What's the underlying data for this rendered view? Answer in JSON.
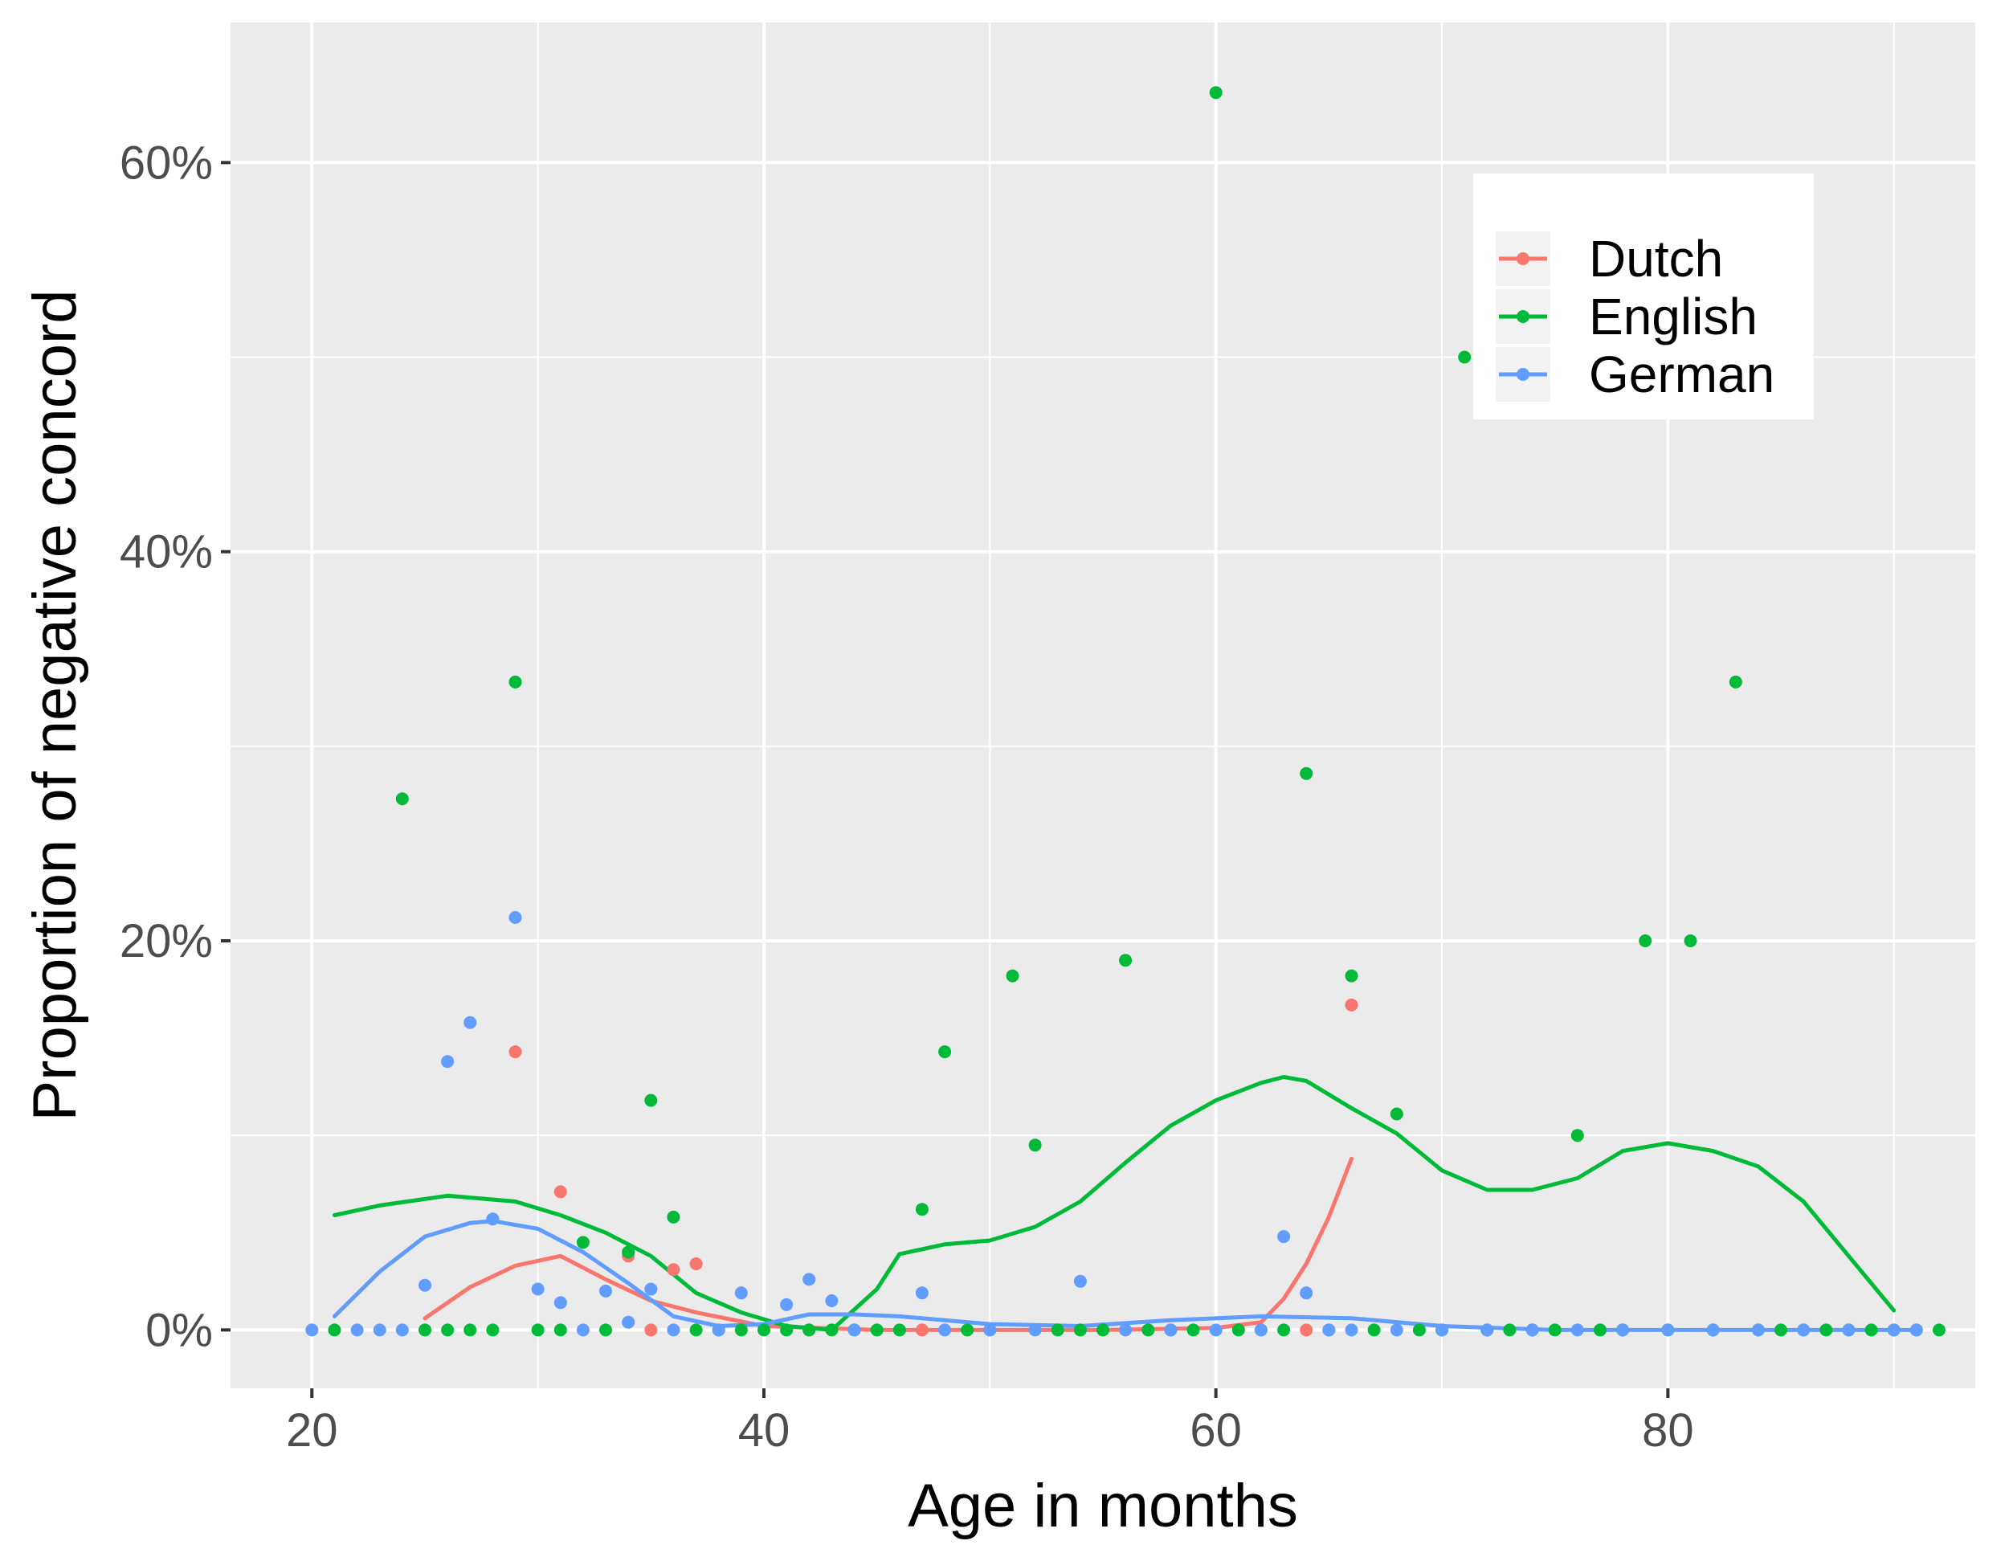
{
  "chart_data": {
    "type": "scatter",
    "title": "",
    "xlabel": "Age in months",
    "ylabel": "Proportion of negative concord",
    "xlim": [
      16.4,
      93.6
    ],
    "ylim": [
      -0.03,
      0.672
    ],
    "x_ticks": [
      20,
      40,
      60,
      80
    ],
    "x_tick_labels": [
      "20",
      "40",
      "60",
      "80"
    ],
    "x_minor_ticks": [
      30,
      50,
      70,
      90
    ],
    "y_ticks": [
      0,
      0.2,
      0.4,
      0.6
    ],
    "y_tick_labels": [
      "0%",
      "20%",
      "40%",
      "60%"
    ],
    "y_minor_ticks": [
      0.1,
      0.3,
      0.5
    ],
    "grid": true,
    "legend_position": "top-right",
    "colors": {
      "panel": "#EBEBEB",
      "grid": "#FFFFFF",
      "Dutch": "#F8766D",
      "English": "#00BA38",
      "German": "#619CFF"
    },
    "series": [
      {
        "name": "Dutch",
        "points": [
          [
            29,
            0.143
          ],
          [
            31,
            0.071
          ],
          [
            34,
            0.038
          ],
          [
            35,
            0.0
          ],
          [
            36,
            0.031
          ],
          [
            37,
            0.034
          ],
          [
            42,
            0.0
          ],
          [
            47,
            0.0
          ],
          [
            64,
            0.0
          ],
          [
            66,
            0.167
          ]
        ],
        "smooth": [
          [
            25,
            0.006
          ],
          [
            27,
            0.022
          ],
          [
            29,
            0.033
          ],
          [
            31,
            0.038
          ],
          [
            33,
            0.026
          ],
          [
            35,
            0.015
          ],
          [
            37,
            0.009
          ],
          [
            40,
            0.002
          ],
          [
            45,
            0.0
          ],
          [
            50,
            0.0
          ],
          [
            55,
            0.0
          ],
          [
            60,
            0.001
          ],
          [
            62,
            0.004
          ],
          [
            63,
            0.016
          ],
          [
            64,
            0.034
          ],
          [
            65,
            0.058
          ],
          [
            66,
            0.088
          ]
        ]
      },
      {
        "name": "English",
        "points": [
          [
            21,
            0.0
          ],
          [
            24,
            0.273
          ],
          [
            25,
            0.0
          ],
          [
            26,
            0.0
          ],
          [
            27,
            0.0
          ],
          [
            28,
            0.0
          ],
          [
            29,
            0.333
          ],
          [
            30,
            0.0
          ],
          [
            31,
            0.0
          ],
          [
            32,
            0.045
          ],
          [
            33,
            0.0
          ],
          [
            34,
            0.04
          ],
          [
            35,
            0.118
          ],
          [
            36,
            0.058
          ],
          [
            37,
            0.0
          ],
          [
            38,
            0.0
          ],
          [
            39,
            0.0
          ],
          [
            40,
            0.0
          ],
          [
            41,
            0.0
          ],
          [
            42,
            0.0
          ],
          [
            43,
            0.0
          ],
          [
            44,
            0.0
          ],
          [
            45,
            0.0
          ],
          [
            46,
            0.0
          ],
          [
            47,
            0.062
          ],
          [
            48,
            0.143
          ],
          [
            49,
            0.0
          ],
          [
            50,
            0.0
          ],
          [
            51,
            0.182
          ],
          [
            52,
            0.095
          ],
          [
            53,
            0.0
          ],
          [
            54,
            0.0
          ],
          [
            55,
            0.0
          ],
          [
            56,
            0.19
          ],
          [
            57,
            0.0
          ],
          [
            58,
            0.0
          ],
          [
            59,
            0.0
          ],
          [
            60,
            0.636
          ],
          [
            61,
            0.0
          ],
          [
            62,
            0.0
          ],
          [
            63,
            0.0
          ],
          [
            64,
            0.286
          ],
          [
            65,
            0.0
          ],
          [
            66,
            0.182
          ],
          [
            67,
            0.0
          ],
          [
            68,
            0.111
          ],
          [
            69,
            0.0
          ],
          [
            70,
            0.0
          ],
          [
            71,
            0.5
          ],
          [
            72,
            0.0
          ],
          [
            73,
            0.0
          ],
          [
            74,
            0.0
          ],
          [
            75,
            0.0
          ],
          [
            76,
            0.1
          ],
          [
            77,
            0.0
          ],
          [
            78,
            0.0
          ],
          [
            79,
            0.2
          ],
          [
            80,
            0.0
          ],
          [
            81,
            0.2
          ],
          [
            82,
            0.0
          ],
          [
            83,
            0.333
          ],
          [
            84,
            0.0
          ],
          [
            85,
            0.0
          ],
          [
            86,
            0.0
          ],
          [
            87,
            0.0
          ],
          [
            88,
            0.0
          ],
          [
            89,
            0.0
          ],
          [
            90,
            0.0
          ],
          [
            91,
            0.0
          ],
          [
            92,
            0.0
          ]
        ],
        "smooth": [
          [
            21,
            0.059
          ],
          [
            23,
            0.064
          ],
          [
            26,
            0.069
          ],
          [
            29,
            0.066
          ],
          [
            31,
            0.059
          ],
          [
            33,
            0.05
          ],
          [
            35,
            0.038
          ],
          [
            37,
            0.019
          ],
          [
            39,
            0.009
          ],
          [
            41,
            0.002
          ],
          [
            43,
            0.0
          ],
          [
            45,
            0.021
          ],
          [
            46,
            0.039
          ],
          [
            48,
            0.044
          ],
          [
            50,
            0.046
          ],
          [
            52,
            0.053
          ],
          [
            54,
            0.066
          ],
          [
            56,
            0.086
          ],
          [
            58,
            0.105
          ],
          [
            60,
            0.118
          ],
          [
            62,
            0.127
          ],
          [
            63,
            0.13
          ],
          [
            64,
            0.128
          ],
          [
            66,
            0.114
          ],
          [
            68,
            0.101
          ],
          [
            70,
            0.082
          ],
          [
            72,
            0.072
          ],
          [
            74,
            0.072
          ],
          [
            76,
            0.078
          ],
          [
            78,
            0.092
          ],
          [
            80,
            0.096
          ],
          [
            82,
            0.092
          ],
          [
            84,
            0.084
          ],
          [
            86,
            0.066
          ],
          [
            88,
            0.038
          ],
          [
            90,
            0.01
          ]
        ]
      },
      {
        "name": "German",
        "points": [
          [
            20,
            0.0
          ],
          [
            22,
            0.0
          ],
          [
            23,
            0.0
          ],
          [
            24,
            0.0
          ],
          [
            25,
            0.023
          ],
          [
            26,
            0.138
          ],
          [
            27,
            0.158
          ],
          [
            28,
            0.057
          ],
          [
            29,
            0.212
          ],
          [
            30,
            0.021
          ],
          [
            31,
            0.014
          ],
          [
            32,
            0.0
          ],
          [
            33,
            0.02
          ],
          [
            34,
            0.004
          ],
          [
            35,
            0.021
          ],
          [
            36,
            0.0
          ],
          [
            38,
            0.0
          ],
          [
            39,
            0.019
          ],
          [
            41,
            0.013
          ],
          [
            42,
            0.026
          ],
          [
            43,
            0.015
          ],
          [
            44,
            0.0
          ],
          [
            47,
            0.019
          ],
          [
            48,
            0.0
          ],
          [
            50,
            0.0
          ],
          [
            52,
            0.0
          ],
          [
            54,
            0.025
          ],
          [
            56,
            0.0
          ],
          [
            58,
            0.0
          ],
          [
            60,
            0.0
          ],
          [
            62,
            0.0
          ],
          [
            63,
            0.048
          ],
          [
            64,
            0.019
          ],
          [
            65,
            0.0
          ],
          [
            66,
            0.0
          ],
          [
            68,
            0.0
          ],
          [
            70,
            0.0
          ],
          [
            72,
            0.0
          ],
          [
            74,
            0.0
          ],
          [
            76,
            0.0
          ],
          [
            78,
            0.0
          ],
          [
            80,
            0.0
          ],
          [
            82,
            0.0
          ],
          [
            84,
            0.0
          ],
          [
            86,
            0.0
          ],
          [
            88,
            0.0
          ],
          [
            90,
            0.0
          ],
          [
            91,
            0.0
          ]
        ],
        "smooth": [
          [
            21,
            0.007
          ],
          [
            23,
            0.03
          ],
          [
            25,
            0.048
          ],
          [
            27,
            0.055
          ],
          [
            28,
            0.056
          ],
          [
            30,
            0.052
          ],
          [
            32,
            0.04
          ],
          [
            34,
            0.024
          ],
          [
            36,
            0.007
          ],
          [
            38,
            0.002
          ],
          [
            40,
            0.003
          ],
          [
            42,
            0.008
          ],
          [
            44,
            0.008
          ],
          [
            46,
            0.007
          ],
          [
            50,
            0.003
          ],
          [
            54,
            0.002
          ],
          [
            58,
            0.005
          ],
          [
            62,
            0.007
          ],
          [
            66,
            0.006
          ],
          [
            70,
            0.002
          ],
          [
            75,
            0.0
          ],
          [
            80,
            0.0
          ],
          [
            85,
            0.0
          ],
          [
            91,
            0.0
          ]
        ]
      }
    ]
  }
}
